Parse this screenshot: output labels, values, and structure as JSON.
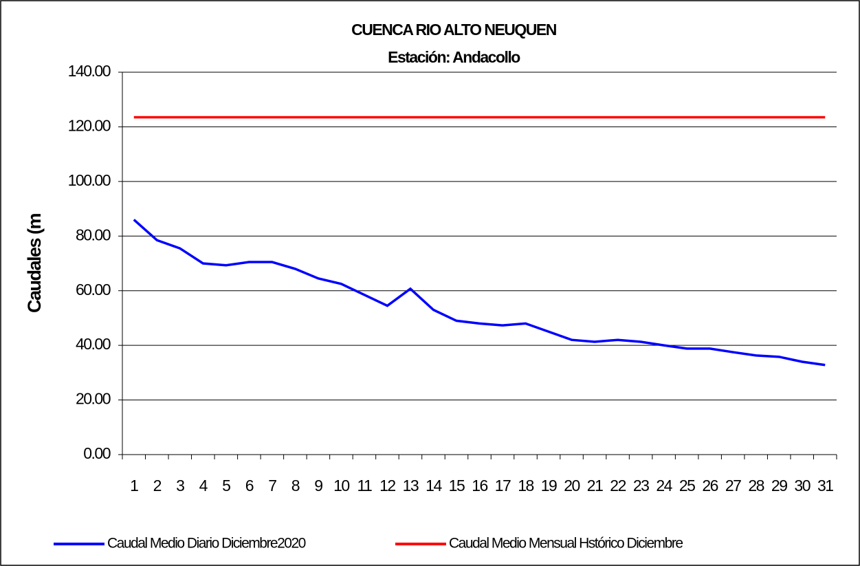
{
  "chart_data": {
    "type": "line",
    "title": "CUENCA RIO ALTO NEUQUEN",
    "subtitle": "Estación: Andacollo",
    "y_label": "Caudales (m",
    "categories": [
      "1",
      "2",
      "3",
      "4",
      "5",
      "6",
      "7",
      "8",
      "9",
      "10",
      "11",
      "12",
      "13",
      "14",
      "15",
      "16",
      "17",
      "18",
      "19",
      "20",
      "21",
      "22",
      "23",
      "24",
      "25",
      "26",
      "27",
      "28",
      "29",
      "30",
      "31"
    ],
    "series": [
      {
        "name": "Caudal Medio Diario Diciembre2020",
        "color": "#0000ff",
        "values": [
          86,
          78.5,
          75.5,
          70,
          69.3,
          70.5,
          70.5,
          68,
          64.5,
          62.5,
          58.5,
          54.5,
          60.7,
          53,
          49,
          48,
          47.3,
          48,
          45,
          42,
          41.3,
          42,
          41.3,
          40,
          38.8,
          38.8,
          37.5,
          36.3,
          35.8,
          34,
          32.8
        ]
      },
      {
        "name": "Caudal Medio Mensual Hstórico Diciembre",
        "color": "#ff0000",
        "values": [
          123.5,
          123.5,
          123.5,
          123.5,
          123.5,
          123.5,
          123.5,
          123.5,
          123.5,
          123.5,
          123.5,
          123.5,
          123.5,
          123.5,
          123.5,
          123.5,
          123.5,
          123.5,
          123.5,
          123.5,
          123.5,
          123.5,
          123.5,
          123.5,
          123.5,
          123.5,
          123.5,
          123.5,
          123.5,
          123.5,
          123.5
        ]
      }
    ],
    "ylim": [
      0,
      140
    ],
    "yticks": [
      {
        "value": 0,
        "label": "0.00"
      },
      {
        "value": 20,
        "label": "20.00"
      },
      {
        "value": 40,
        "label": "40.00"
      },
      {
        "value": 60,
        "label": "60.00"
      },
      {
        "value": 80,
        "label": "80.00"
      },
      {
        "value": 100,
        "label": "100.00"
      },
      {
        "value": 120,
        "label": "120.00"
      },
      {
        "value": 140,
        "label": "140.00"
      }
    ],
    "grid": true,
    "legend": "bottom"
  }
}
